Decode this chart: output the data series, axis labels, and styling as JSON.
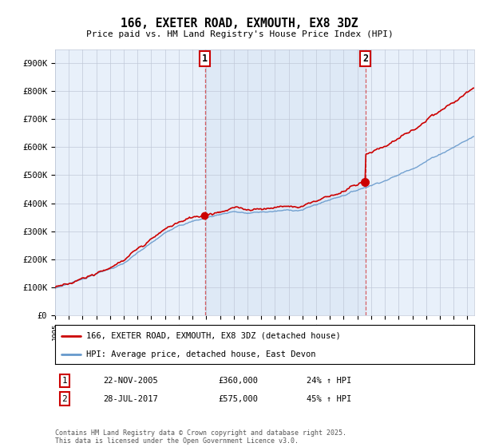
{
  "title": "166, EXETER ROAD, EXMOUTH, EX8 3DZ",
  "subtitle": "Price paid vs. HM Land Registry's House Price Index (HPI)",
  "ylim": [
    0,
    950000
  ],
  "yticks": [
    0,
    100000,
    200000,
    300000,
    400000,
    500000,
    600000,
    700000,
    800000,
    900000
  ],
  "ytick_labels": [
    "£0",
    "£100K",
    "£200K",
    "£300K",
    "£400K",
    "£500K",
    "£600K",
    "£700K",
    "£800K",
    "£900K"
  ],
  "hpi_color": "#6699cc",
  "price_color": "#cc0000",
  "bg_color": "#e8f0fa",
  "grid_color": "#c0c8d8",
  "shade_color": "#dce8f5",
  "purchase1_date": 2005.9,
  "purchase1_price": 360000,
  "purchase2_date": 2017.57,
  "purchase2_price": 575000,
  "legend_line1": "166, EXETER ROAD, EXMOUTH, EX8 3DZ (detached house)",
  "legend_line2": "HPI: Average price, detached house, East Devon",
  "table_row1": [
    "1",
    "22-NOV-2005",
    "£360,000",
    "24% ↑ HPI"
  ],
  "table_row2": [
    "2",
    "28-JUL-2017",
    "£575,000",
    "45% ↑ HPI"
  ],
  "footer": "Contains HM Land Registry data © Crown copyright and database right 2025.\nThis data is licensed under the Open Government Licence v3.0.",
  "xmin": 1995,
  "xmax": 2025.5
}
